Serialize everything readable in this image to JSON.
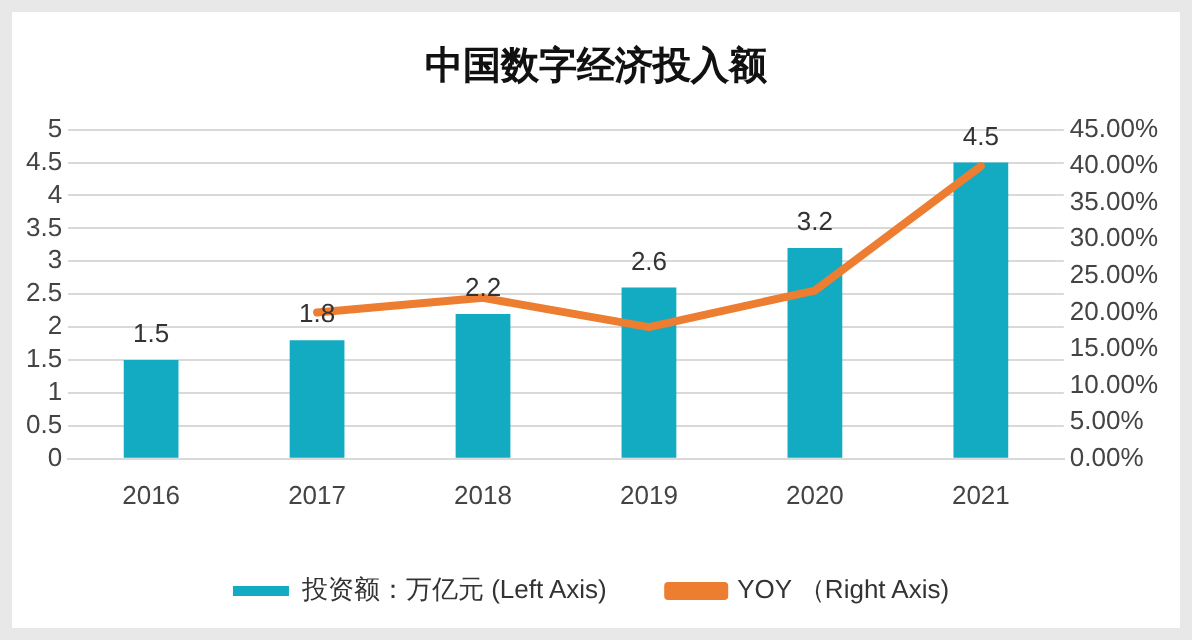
{
  "chart_data": {
    "type": "bar",
    "title": "中国数字经济投入额",
    "categories": [
      "2016",
      "2017",
      "2018",
      "2019",
      "2020",
      "2021"
    ],
    "series": [
      {
        "name": "投资额：万亿元 (Left Axis)",
        "color": "#12abc1",
        "values": [
          1.5,
          1.8,
          2.2,
          2.6,
          3.2,
          4.5
        ],
        "value_labels": [
          "1.5",
          "1.8",
          "2.2",
          "2.6",
          "3.2",
          "4.5"
        ]
      },
      {
        "name": "YOY （Right Axis)",
        "type": "line",
        "axis": "y2",
        "color": "#ed7d31",
        "values": [
          null,
          20,
          22,
          18,
          23,
          40
        ]
      }
    ],
    "ylim": [
      0,
      5
    ],
    "yticks": [
      0,
      0.5,
      1,
      1.5,
      2,
      2.5,
      3,
      3.5,
      4,
      4.5,
      5
    ],
    "y2lim": [
      0,
      45
    ],
    "y2ticks": [
      {
        "value": 0,
        "label": "0.00%"
      },
      {
        "value": 5,
        "label": "5.00%"
      },
      {
        "value": 10,
        "label": "10.00%"
      },
      {
        "value": 15,
        "label": "15.00%"
      },
      {
        "value": 20,
        "label": "20.00%"
      },
      {
        "value": 25,
        "label": "25.00%"
      },
      {
        "value": 30,
        "label": "30.00%"
      },
      {
        "value": 35,
        "label": "35.00%"
      },
      {
        "value": 40,
        "label": "40.00%"
      },
      {
        "value": 45,
        "label": "45.00%"
      }
    ],
    "grid": "y",
    "legend": "bottom",
    "marker": "none",
    "line_style": "solid"
  }
}
